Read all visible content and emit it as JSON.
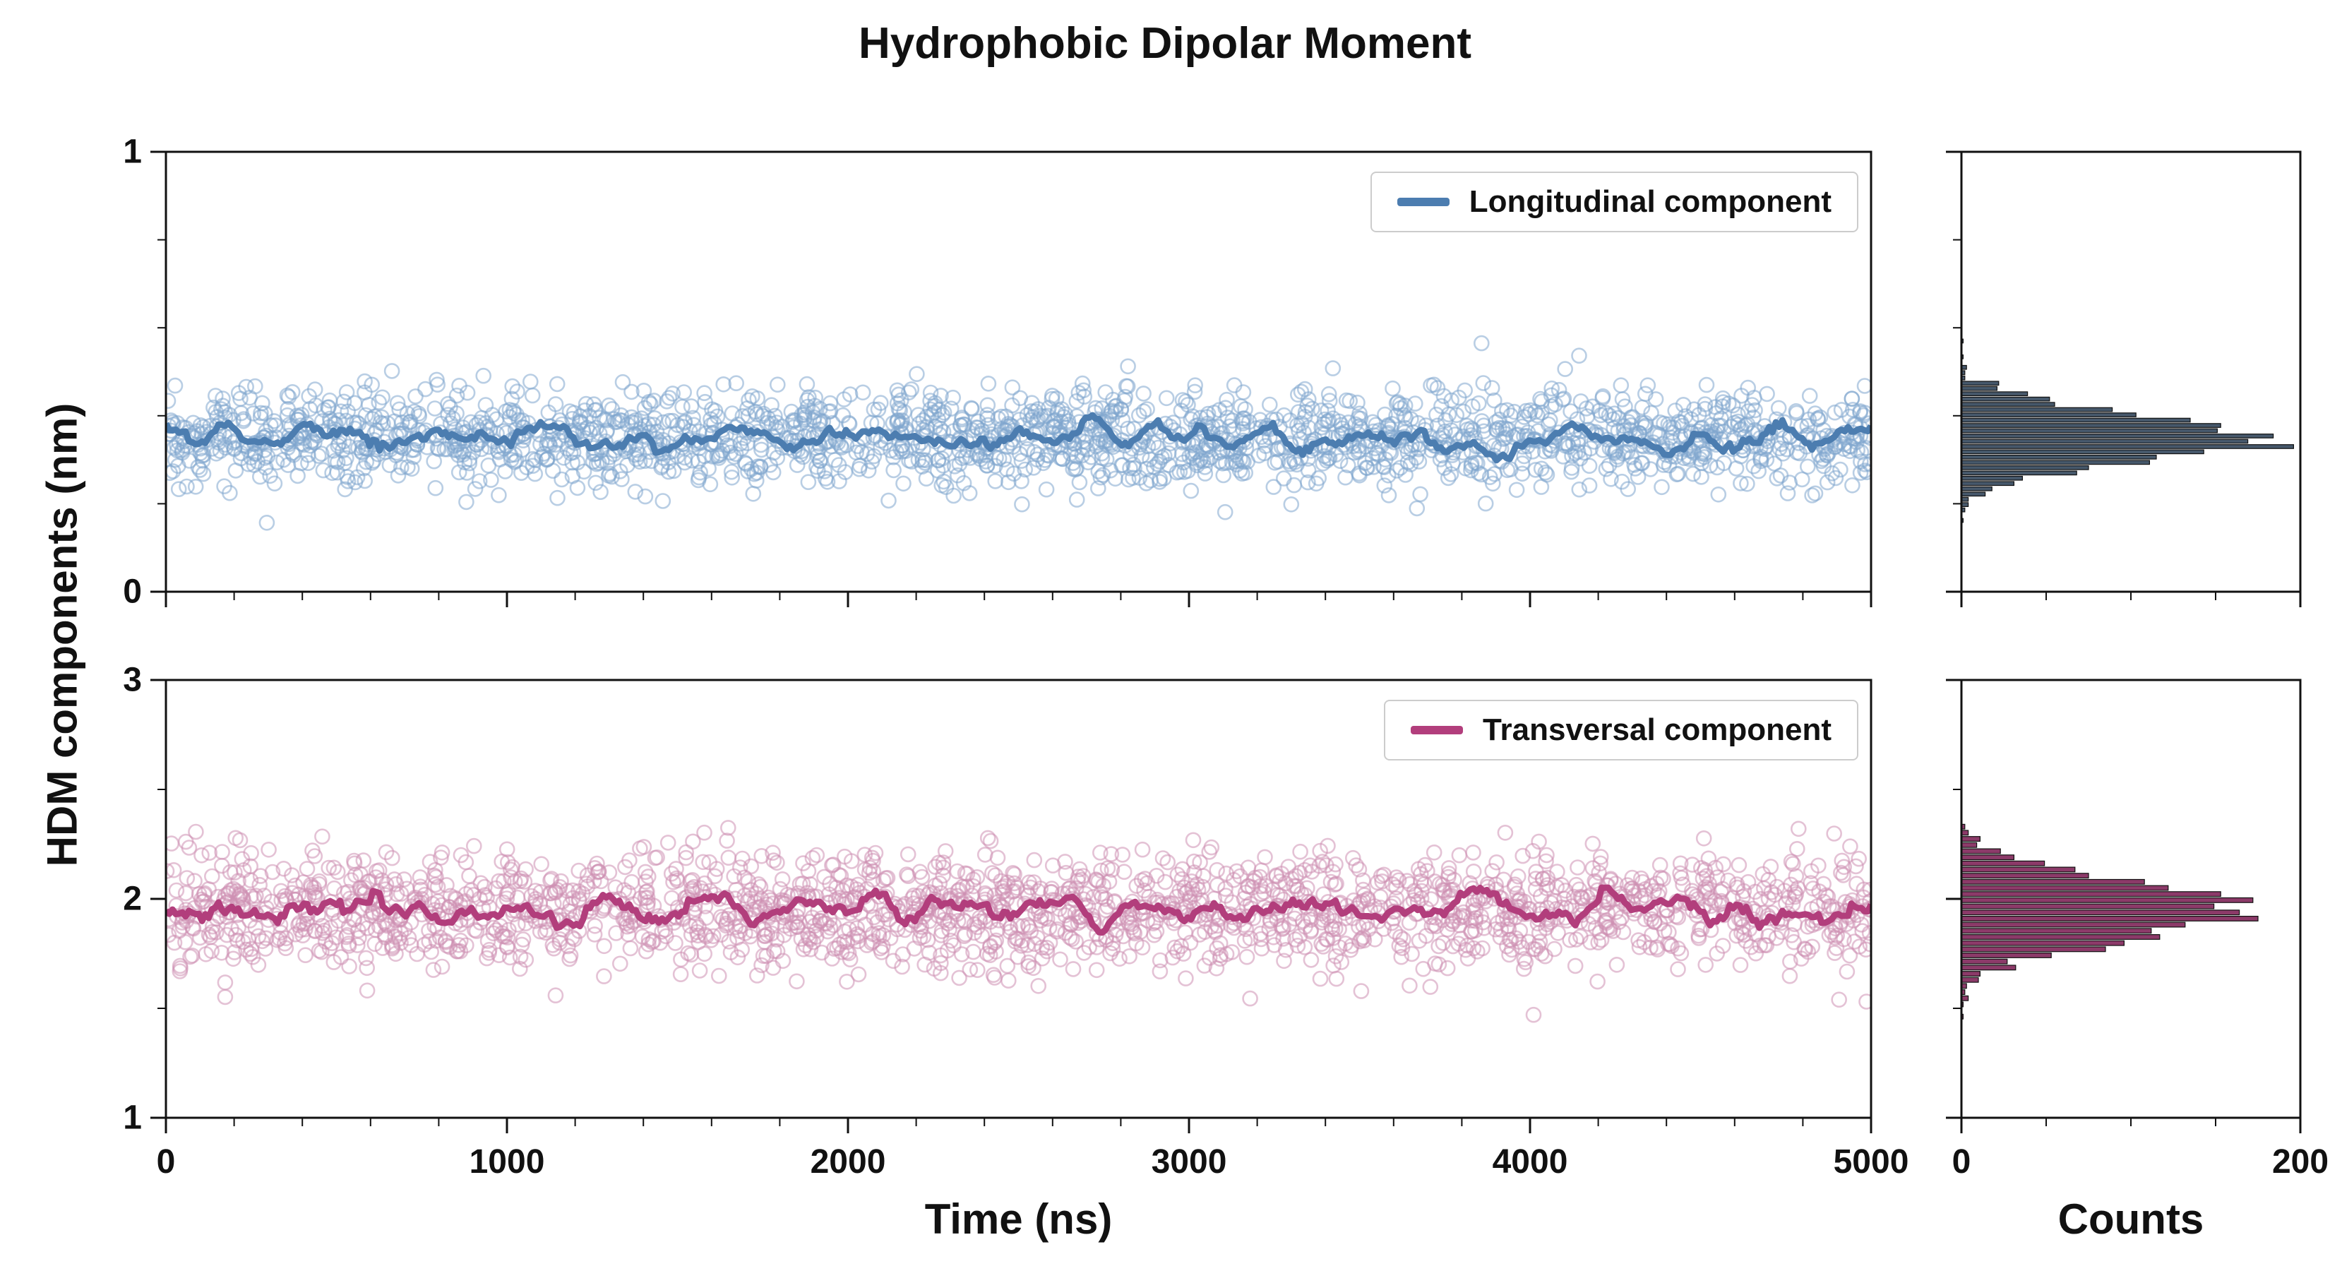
{
  "title": "Hydrophobic Dipolar Moment",
  "axes": {
    "ylabel": "HDM components (nm)",
    "xlabel": "Time (ns)",
    "counts_label": "Counts"
  },
  "chart_data": [
    {
      "type": "scatter",
      "name": "Longitudinal component",
      "x_range": [
        0,
        5000
      ],
      "xticks": [
        0,
        1000,
        2000,
        3000,
        4000,
        5000
      ],
      "x_minor_step": 200,
      "ylim": [
        0,
        1
      ],
      "yticks": [
        0,
        1
      ],
      "y_minor_step": 0.2,
      "mean": 0.35,
      "std": 0.055,
      "n_points": 2000,
      "colors": {
        "scatter": "#7FA6CE",
        "line": "#4C7DB0",
        "hist": "#46586B"
      },
      "histogram": {
        "xlim": [
          0,
          200
        ],
        "xticks": [
          0,
          200
        ],
        "x_minor_step": 50,
        "bin_width": 0.012,
        "peak_counts": 175
      }
    },
    {
      "type": "scatter",
      "name": "Transversal component",
      "x_range": [
        0,
        5000
      ],
      "xticks": [
        0,
        1000,
        2000,
        3000,
        4000,
        5000
      ],
      "x_minor_step": 200,
      "ylim": [
        1,
        3
      ],
      "yticks": [
        1,
        2,
        3
      ],
      "y_minor_step": 0.5,
      "mean": 1.95,
      "std": 0.13,
      "n_points": 2000,
      "colors": {
        "scatter": "#CE8FB2",
        "line": "#B23E7C",
        "hist": "#8C3A69"
      },
      "histogram": {
        "xlim": [
          0,
          200
        ],
        "xticks": [
          0,
          200
        ],
        "x_minor_step": 50,
        "bin_width": 0.028,
        "peak_counts": 175
      }
    }
  ]
}
